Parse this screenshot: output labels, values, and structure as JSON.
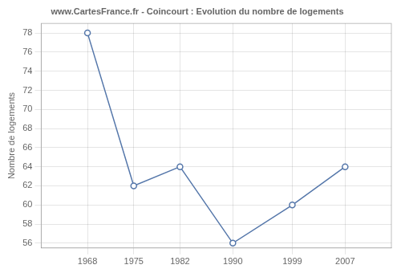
{
  "chart_data": {
    "type": "line",
    "title": "www.CartesFrance.fr - Coincourt : Evolution du nombre de logements",
    "ylabel": "Nombre de logements",
    "x": [
      1968,
      1975,
      1982,
      1990,
      1999,
      2007
    ],
    "values": [
      78,
      62,
      64,
      56,
      60,
      64
    ],
    "color": "#5577aa",
    "marker": "circle",
    "xlim": [
      1961,
      2014
    ],
    "ylim": [
      55.5,
      79
    ],
    "xticks": [
      1968,
      1975,
      1982,
      1990,
      1999,
      2007
    ],
    "yticks": [
      56,
      58,
      60,
      62,
      64,
      66,
      68,
      70,
      72,
      74,
      76,
      78
    ],
    "grid": true
  }
}
